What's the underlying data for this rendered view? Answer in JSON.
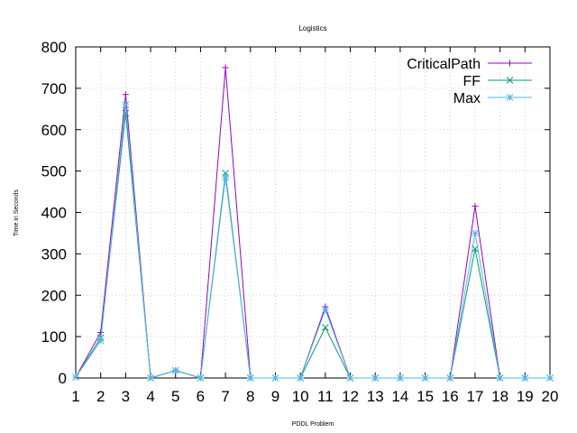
{
  "chart_data": {
    "type": "line",
    "title": "Logistics",
    "xlabel": "PDDL Problem",
    "ylabel": "Time in Seconds",
    "x": [
      1,
      2,
      3,
      4,
      5,
      6,
      7,
      8,
      9,
      10,
      11,
      12,
      13,
      14,
      15,
      16,
      17,
      18,
      19,
      20
    ],
    "xlim": [
      1,
      20
    ],
    "ylim": [
      0,
      800
    ],
    "yticks": [
      0,
      100,
      200,
      300,
      400,
      500,
      600,
      700,
      800
    ],
    "grid": true,
    "legend_position": "top-right",
    "series": [
      {
        "name": "CriticalPath",
        "color": "#9400d3",
        "marker": "plus",
        "values": [
          2,
          110,
          685,
          0,
          18,
          0,
          750,
          0,
          0,
          0,
          172,
          0,
          0,
          0,
          0,
          0,
          415,
          0,
          0,
          0
        ]
      },
      {
        "name": "FF",
        "color": "#009e73",
        "marker": "cross",
        "values": [
          2,
          97,
          640,
          0,
          18,
          0,
          495,
          0,
          0,
          0,
          122,
          0,
          0,
          0,
          0,
          0,
          312,
          0,
          0,
          0
        ]
      },
      {
        "name": "Max",
        "color": "#56b4e9",
        "marker": "star",
        "values": [
          2,
          90,
          660,
          0,
          18,
          0,
          485,
          0,
          0,
          0,
          165,
          0,
          0,
          0,
          0,
          0,
          350,
          0,
          0,
          0
        ]
      }
    ]
  }
}
